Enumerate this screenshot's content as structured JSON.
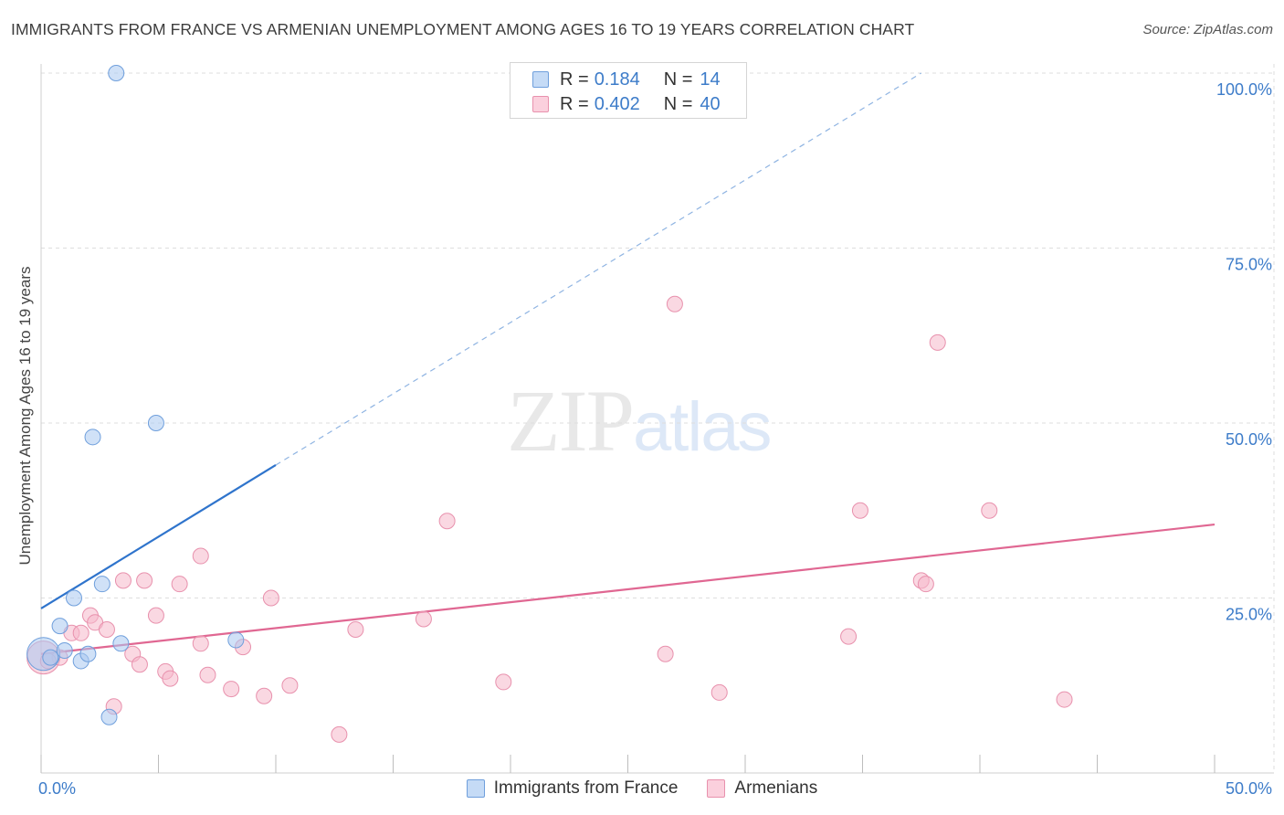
{
  "header": {
    "title": "IMMIGRANTS FROM FRANCE VS ARMENIAN UNEMPLOYMENT AMONG AGES 16 TO 19 YEARS CORRELATION CHART",
    "source": "Source: ZipAtlas.com"
  },
  "watermark": {
    "part1": "ZIP",
    "part2": "atlas"
  },
  "legend": {
    "france": {
      "r_label": "R =",
      "r_value": "0.184",
      "n_label": "N =",
      "n_value": "14",
      "name": "Immigrants from France"
    },
    "armenians": {
      "r_label": "R =",
      "r_value": "0.402",
      "n_label": "N =",
      "n_value": "40",
      "name": "Armenians"
    }
  },
  "colors": {
    "france_fill": "#aac8f0",
    "france_stroke": "#6f9fdc",
    "france_line": "#2f74cc",
    "armenians_fill": "#f6b8cb",
    "armenians_stroke": "#e891ad",
    "armenians_line": "#e06792",
    "tick_label": "#3d7cc9",
    "grid": "#dedede"
  },
  "chart_data": {
    "type": "scatter",
    "title": "IMMIGRANTS FROM FRANCE VS ARMENIAN UNEMPLOYMENT AMONG AGES 16 TO 19 YEARS CORRELATION CHART",
    "xlabel": "",
    "ylabel": "Unemployment Among Ages 16 to 19 years",
    "xlim": [
      0,
      50
    ],
    "ylim": [
      0,
      102
    ],
    "x_tick_labels": [
      "0.0%",
      "50.0%"
    ],
    "y_ticks": [
      25,
      50,
      75,
      100
    ],
    "y_tick_labels": [
      "25.0%",
      "50.0%",
      "75.0%",
      "100.0%"
    ],
    "grid": true,
    "series": [
      {
        "name": "Immigrants from France",
        "points": [
          {
            "x": 0.1,
            "y": 17.0,
            "big": true
          },
          {
            "x": 0.4,
            "y": 16.5
          },
          {
            "x": 0.8,
            "y": 21.0
          },
          {
            "x": 1.0,
            "y": 17.5
          },
          {
            "x": 1.4,
            "y": 25.0
          },
          {
            "x": 1.7,
            "y": 16.0
          },
          {
            "x": 2.0,
            "y": 17.0
          },
          {
            "x": 2.2,
            "y": 48.0
          },
          {
            "x": 2.6,
            "y": 27.0
          },
          {
            "x": 2.9,
            "y": 8.0
          },
          {
            "x": 3.2,
            "y": 100.0
          },
          {
            "x": 3.4,
            "y": 18.5
          },
          {
            "x": 4.9,
            "y": 50.0
          },
          {
            "x": 8.3,
            "y": 19.0
          }
        ],
        "trend": {
          "x1": 0,
          "y1": 23.5,
          "x2": 10,
          "y2": 44.0,
          "dash_x2": 37.5,
          "dash_y2": 100.0
        }
      },
      {
        "name": "Armenians",
        "points": [
          {
            "x": 0.1,
            "y": 16.5,
            "big": true
          },
          {
            "x": 0.8,
            "y": 16.5
          },
          {
            "x": 1.3,
            "y": 20.0
          },
          {
            "x": 1.7,
            "y": 20.0
          },
          {
            "x": 2.1,
            "y": 22.5
          },
          {
            "x": 2.3,
            "y": 21.5
          },
          {
            "x": 2.8,
            "y": 20.5
          },
          {
            "x": 3.1,
            "y": 9.5
          },
          {
            "x": 3.5,
            "y": 27.5
          },
          {
            "x": 3.9,
            "y": 17.0
          },
          {
            "x": 4.2,
            "y": 15.5
          },
          {
            "x": 4.4,
            "y": 27.5
          },
          {
            "x": 4.9,
            "y": 22.5
          },
          {
            "x": 5.3,
            "y": 14.5
          },
          {
            "x": 5.5,
            "y": 13.5
          },
          {
            "x": 5.9,
            "y": 27.0
          },
          {
            "x": 6.8,
            "y": 31.0
          },
          {
            "x": 6.8,
            "y": 18.5
          },
          {
            "x": 7.1,
            "y": 14.0
          },
          {
            "x": 8.1,
            "y": 12.0
          },
          {
            "x": 8.6,
            "y": 18.0
          },
          {
            "x": 9.5,
            "y": 11.0
          },
          {
            "x": 9.8,
            "y": 25.0
          },
          {
            "x": 10.6,
            "y": 12.5
          },
          {
            "x": 12.7,
            "y": 5.5
          },
          {
            "x": 13.4,
            "y": 20.5
          },
          {
            "x": 16.3,
            "y": 22.0
          },
          {
            "x": 17.3,
            "y": 36.0
          },
          {
            "x": 19.7,
            "y": 13.0
          },
          {
            "x": 26.6,
            "y": 17.0
          },
          {
            "x": 27.0,
            "y": 67.0
          },
          {
            "x": 28.9,
            "y": 11.5
          },
          {
            "x": 34.4,
            "y": 19.5
          },
          {
            "x": 34.9,
            "y": 37.5
          },
          {
            "x": 37.5,
            "y": 27.5
          },
          {
            "x": 37.7,
            "y": 27.0
          },
          {
            "x": 38.2,
            "y": 61.5
          },
          {
            "x": 40.4,
            "y": 37.5
          },
          {
            "x": 43.6,
            "y": 10.5
          },
          {
            "x": 0.3,
            "y": 16.0
          }
        ],
        "trend": {
          "x1": 0,
          "y1": 17.0,
          "x2": 50,
          "y2": 35.5
        }
      }
    ]
  }
}
